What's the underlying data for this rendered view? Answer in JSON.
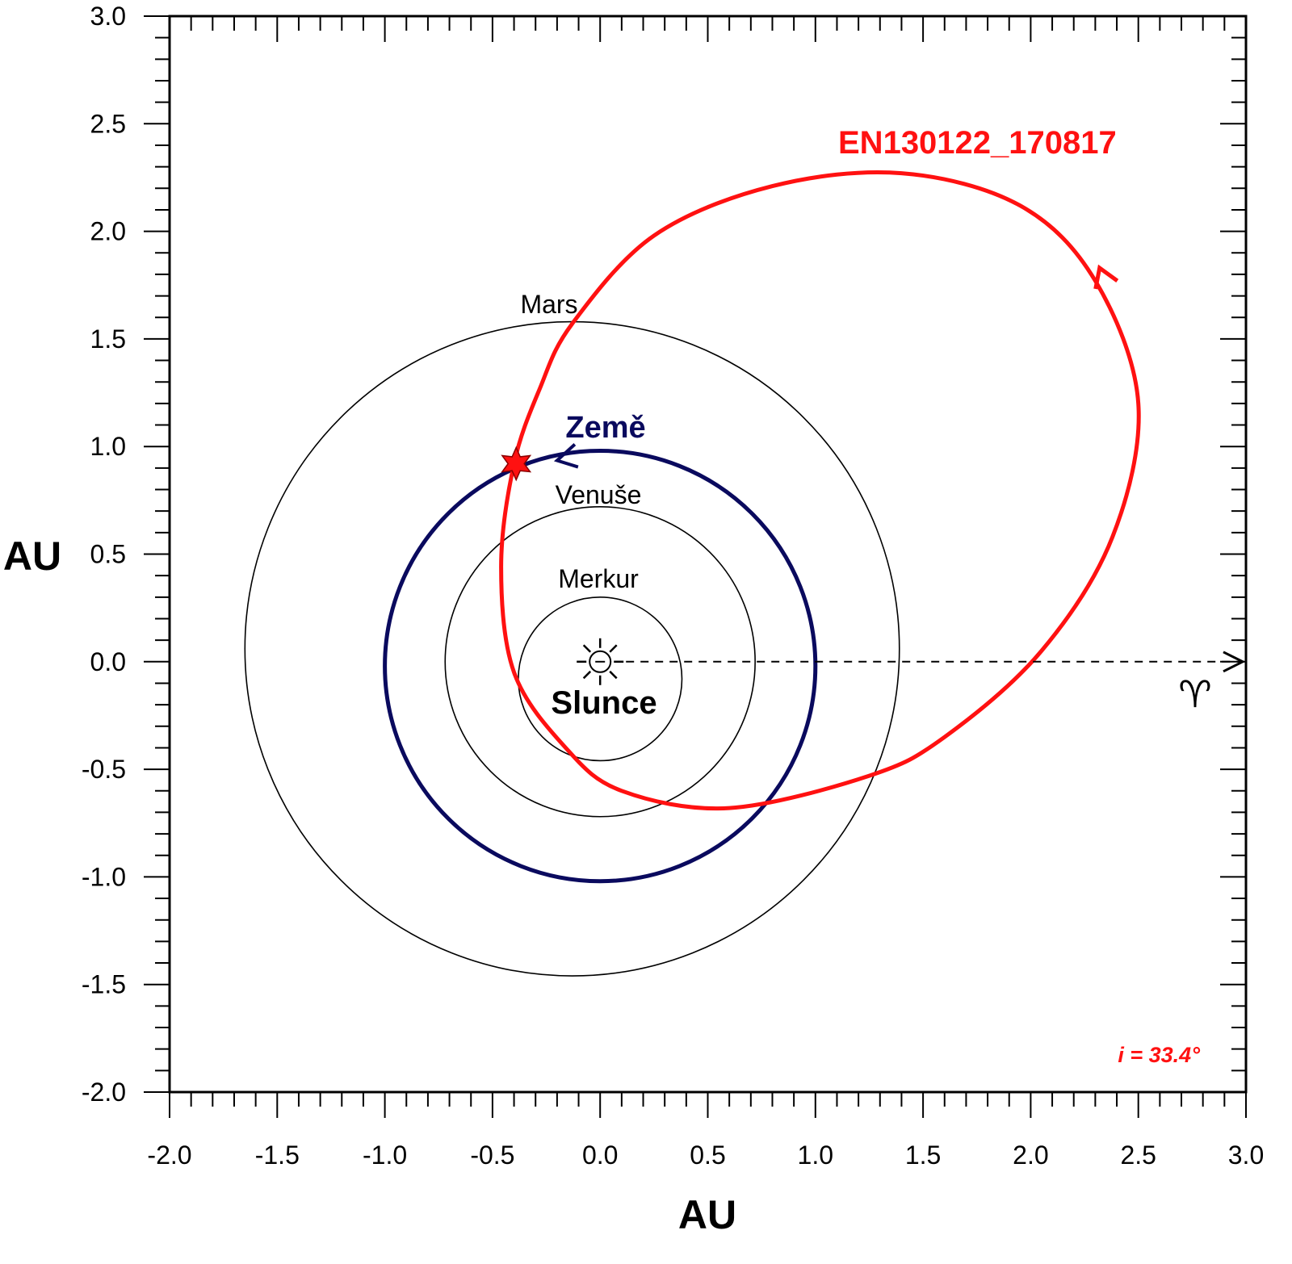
{
  "chart_data": {
    "type": "orbit-diagram",
    "xlabel": "AU",
    "ylabel": "AU",
    "xlim": [
      -2.0,
      3.0
    ],
    "ylim": [
      -2.0,
      3.0
    ],
    "x_ticks": [
      "-2.0",
      "-1.5",
      "-1.0",
      "-0.5",
      "0.0",
      "0.5",
      "1.0",
      "1.5",
      "2.0",
      "2.5",
      "3.0"
    ],
    "y_ticks": [
      "3.0",
      "2.5",
      "2.0",
      "1.5",
      "1.0",
      "0.5",
      "0.0",
      "-0.5",
      "-1.0",
      "-1.5",
      "-2.0"
    ],
    "sun": {
      "label": "Slunce",
      "x": 0.0,
      "y": 0.0
    },
    "planets": [
      {
        "name": "Merkur",
        "cx": 0.0,
        "cy": -0.08,
        "rx": 0.38,
        "ry": 0.38
      },
      {
        "name": "Venuše",
        "cx": 0.0,
        "cy": 0.0,
        "rx": 0.72,
        "ry": 0.72
      },
      {
        "name": "Země",
        "cx": 0.0,
        "cy": -0.02,
        "rx": 1.0,
        "ry": 1.0
      },
      {
        "name": "Mars",
        "cx": -0.13,
        "cy": 0.06,
        "rx": 1.52,
        "ry": 1.52
      }
    ],
    "meteoroid_orbit": {
      "name": "EN130122_170817",
      "points": [
        [
          -0.4,
          0.92
        ],
        [
          -0.28,
          1.27
        ],
        [
          -0.13,
          1.57
        ],
        [
          0.25,
          1.98
        ],
        [
          0.8,
          2.21
        ],
        [
          1.4,
          2.27
        ],
        [
          1.95,
          2.12
        ],
        [
          2.3,
          1.77
        ],
        [
          2.5,
          1.2
        ],
        [
          2.38,
          0.58
        ],
        [
          2.05,
          0.05
        ],
        [
          1.6,
          -0.35
        ],
        [
          1.25,
          -0.53
        ],
        [
          0.6,
          -0.68
        ],
        [
          0.1,
          -0.6
        ],
        [
          -0.16,
          -0.4
        ],
        [
          -0.4,
          -0.05
        ],
        [
          -0.46,
          0.44
        ],
        [
          -0.4,
          0.92
        ]
      ]
    },
    "impact_point": {
      "x": -0.39,
      "y": 0.92
    },
    "vernal_equinox": {
      "symbol": "♈",
      "from": [
        0.0,
        0.0
      ],
      "to": [
        3.0,
        0.0
      ]
    },
    "inclination_label": "i = 33.4°",
    "colors": {
      "earth": "#0a0a5e",
      "meteoroid": "#ff1111",
      "planets": "#000000"
    }
  }
}
